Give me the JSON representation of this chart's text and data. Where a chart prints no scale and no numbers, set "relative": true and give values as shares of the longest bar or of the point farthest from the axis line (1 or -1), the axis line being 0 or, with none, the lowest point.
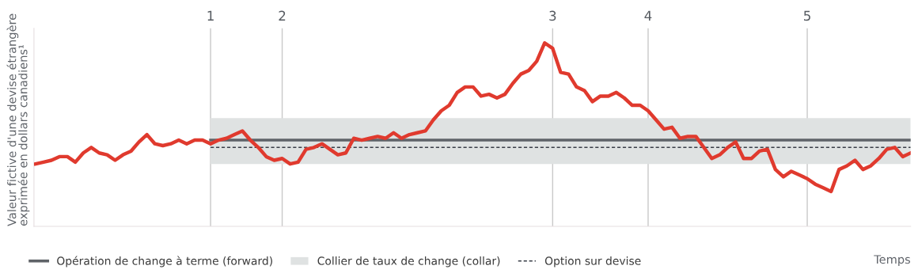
{
  "chart_data": {
    "type": "line",
    "relative": true,
    "ylabel": "Valeur fictive d'une devise étrangère\nexprimée en dollars canadiens¹",
    "xlabel": "Temps",
    "tick_labels": "x",
    "grid": "x",
    "legend": "bottom",
    "marker": "none",
    "categories": [
      null,
      null,
      null,
      null,
      null,
      null,
      null,
      null,
      null,
      null,
      null,
      null,
      null,
      null,
      null,
      null,
      null,
      null,
      null,
      null,
      null,
      null,
      "1",
      null,
      null,
      null,
      null,
      null,
      null,
      null,
      null,
      "2",
      null,
      null,
      null,
      null,
      null,
      null,
      null,
      null,
      null,
      null,
      null,
      null,
      null,
      null,
      null,
      null,
      null,
      null,
      null,
      null,
      null,
      null,
      null,
      null,
      null,
      null,
      null,
      null,
      null,
      null,
      null,
      null,
      null,
      "3",
      null,
      null,
      null,
      null,
      null,
      null,
      null,
      null,
      null,
      null,
      null,
      "4",
      null,
      null,
      null,
      null,
      null,
      null,
      null,
      null,
      null,
      null,
      null,
      null,
      null,
      null,
      null,
      null,
      null,
      null,
      null,
      "5",
      null,
      null,
      null,
      null,
      null,
      null,
      null,
      null,
      null,
      null,
      null,
      null,
      null
    ],
    "series": [
      {
        "name": "Opération de change à terme (forward)",
        "color": "#5f6368",
        "line_style": "solid",
        "values": [
          null,
          null,
          null,
          null,
          null,
          null,
          null,
          null,
          null,
          null,
          null,
          null,
          null,
          null,
          null,
          null,
          null,
          null,
          null,
          null,
          null,
          null,
          0.47,
          0.47,
          0.47,
          0.47,
          0.47,
          0.47,
          0.47,
          0.47,
          0.47,
          0.47,
          0.47,
          0.47,
          0.47,
          0.47,
          0.47,
          0.47,
          0.47,
          0.47,
          0.47,
          0.47,
          0.47,
          0.47,
          0.47,
          0.47,
          0.47,
          0.47,
          0.47,
          0.47,
          0.47,
          0.47,
          0.47,
          0.47,
          0.47,
          0.47,
          0.47,
          0.47,
          0.47,
          0.47,
          0.47,
          0.47,
          0.47,
          0.47,
          0.47,
          0.47,
          0.47,
          0.47,
          0.47,
          0.47,
          0.47,
          0.47,
          0.47,
          0.47,
          0.47,
          0.47,
          0.47,
          0.47,
          0.47,
          0.47,
          0.47,
          0.47,
          0.47,
          0.47,
          0.47,
          0.47,
          0.47,
          0.47,
          0.47,
          0.47,
          0.47,
          0.47,
          0.47,
          0.47,
          0.47,
          0.47,
          0.47,
          0.47,
          0.47,
          0.47,
          0.47,
          0.47,
          0.47,
          0.47,
          0.47,
          0.47,
          0.47,
          0.47,
          0.47,
          0.47,
          0.47
        ]
      },
      {
        "name": "Option sur devise",
        "color": "#3a3f48",
        "line_style": "dashed",
        "values": [
          null,
          null,
          null,
          null,
          null,
          null,
          null,
          null,
          null,
          null,
          null,
          null,
          null,
          null,
          null,
          null,
          null,
          null,
          null,
          null,
          null,
          null,
          0.43,
          0.43,
          0.43,
          0.43,
          0.43,
          0.43,
          0.43,
          0.43,
          0.43,
          0.43,
          0.43,
          0.43,
          0.43,
          0.43,
          0.43,
          0.43,
          0.43,
          0.43,
          0.43,
          0.43,
          0.43,
          0.43,
          0.43,
          0.43,
          0.43,
          0.43,
          0.43,
          0.43,
          0.43,
          0.43,
          0.43,
          0.43,
          0.43,
          0.43,
          0.43,
          0.43,
          0.43,
          0.43,
          0.43,
          0.43,
          0.43,
          0.43,
          0.43,
          0.43,
          0.43,
          0.43,
          0.43,
          0.43,
          0.43,
          0.43,
          0.43,
          0.43,
          0.43,
          0.43,
          0.43,
          0.43,
          0.43,
          0.43,
          0.43,
          0.43,
          0.43,
          0.43,
          0.43,
          0.43,
          0.43,
          0.43,
          0.43,
          0.43,
          0.43,
          0.43,
          0.43,
          0.43,
          0.43,
          0.43,
          0.43,
          0.43,
          0.43,
          0.43,
          0.43,
          0.43,
          0.43,
          0.43,
          0.43,
          0.43,
          0.43,
          0.43,
          0.43,
          0.43,
          0.43
        ]
      },
      {
        "color": "#e03a2e",
        "line_style": "solid",
        "values": [
          0.34,
          0.35,
          0.36,
          0.38,
          0.38,
          0.35,
          0.4,
          0.43,
          0.4,
          0.39,
          0.36,
          0.39,
          0.41,
          0.46,
          0.5,
          0.45,
          0.44,
          0.45,
          0.47,
          0.45,
          0.47,
          0.47,
          0.45,
          0.47,
          0.48,
          0.5,
          0.52,
          0.47,
          0.43,
          0.38,
          0.36,
          0.37,
          0.34,
          0.35,
          0.42,
          0.43,
          0.45,
          0.42,
          0.39,
          0.4,
          0.48,
          0.47,
          0.48,
          0.49,
          0.48,
          0.51,
          0.48,
          0.5,
          0.51,
          0.52,
          0.58,
          0.63,
          0.66,
          0.73,
          0.76,
          0.76,
          0.71,
          0.72,
          0.7,
          0.72,
          0.78,
          0.83,
          0.85,
          0.9,
          1.0,
          0.97,
          0.84,
          0.83,
          0.76,
          0.74,
          0.68,
          0.71,
          0.71,
          0.73,
          0.7,
          0.66,
          0.66,
          0.63,
          0.58,
          0.53,
          0.54,
          0.48,
          0.49,
          0.49,
          0.43,
          0.37,
          0.39,
          0.43,
          0.46,
          0.37,
          0.37,
          0.41,
          0.42,
          0.31,
          0.27,
          0.3,
          0.28,
          0.26,
          0.23,
          0.21,
          0.19,
          0.31,
          0.33,
          0.36,
          0.31,
          0.33,
          0.37,
          0.42,
          0.43,
          0.38,
          0.4
        ]
      }
    ],
    "bands": [
      {
        "axis": "y",
        "from": 0.34,
        "to": 0.59,
        "label": "Collier de taux de change (collar)",
        "color": "#dfe2e2"
      }
    ]
  }
}
